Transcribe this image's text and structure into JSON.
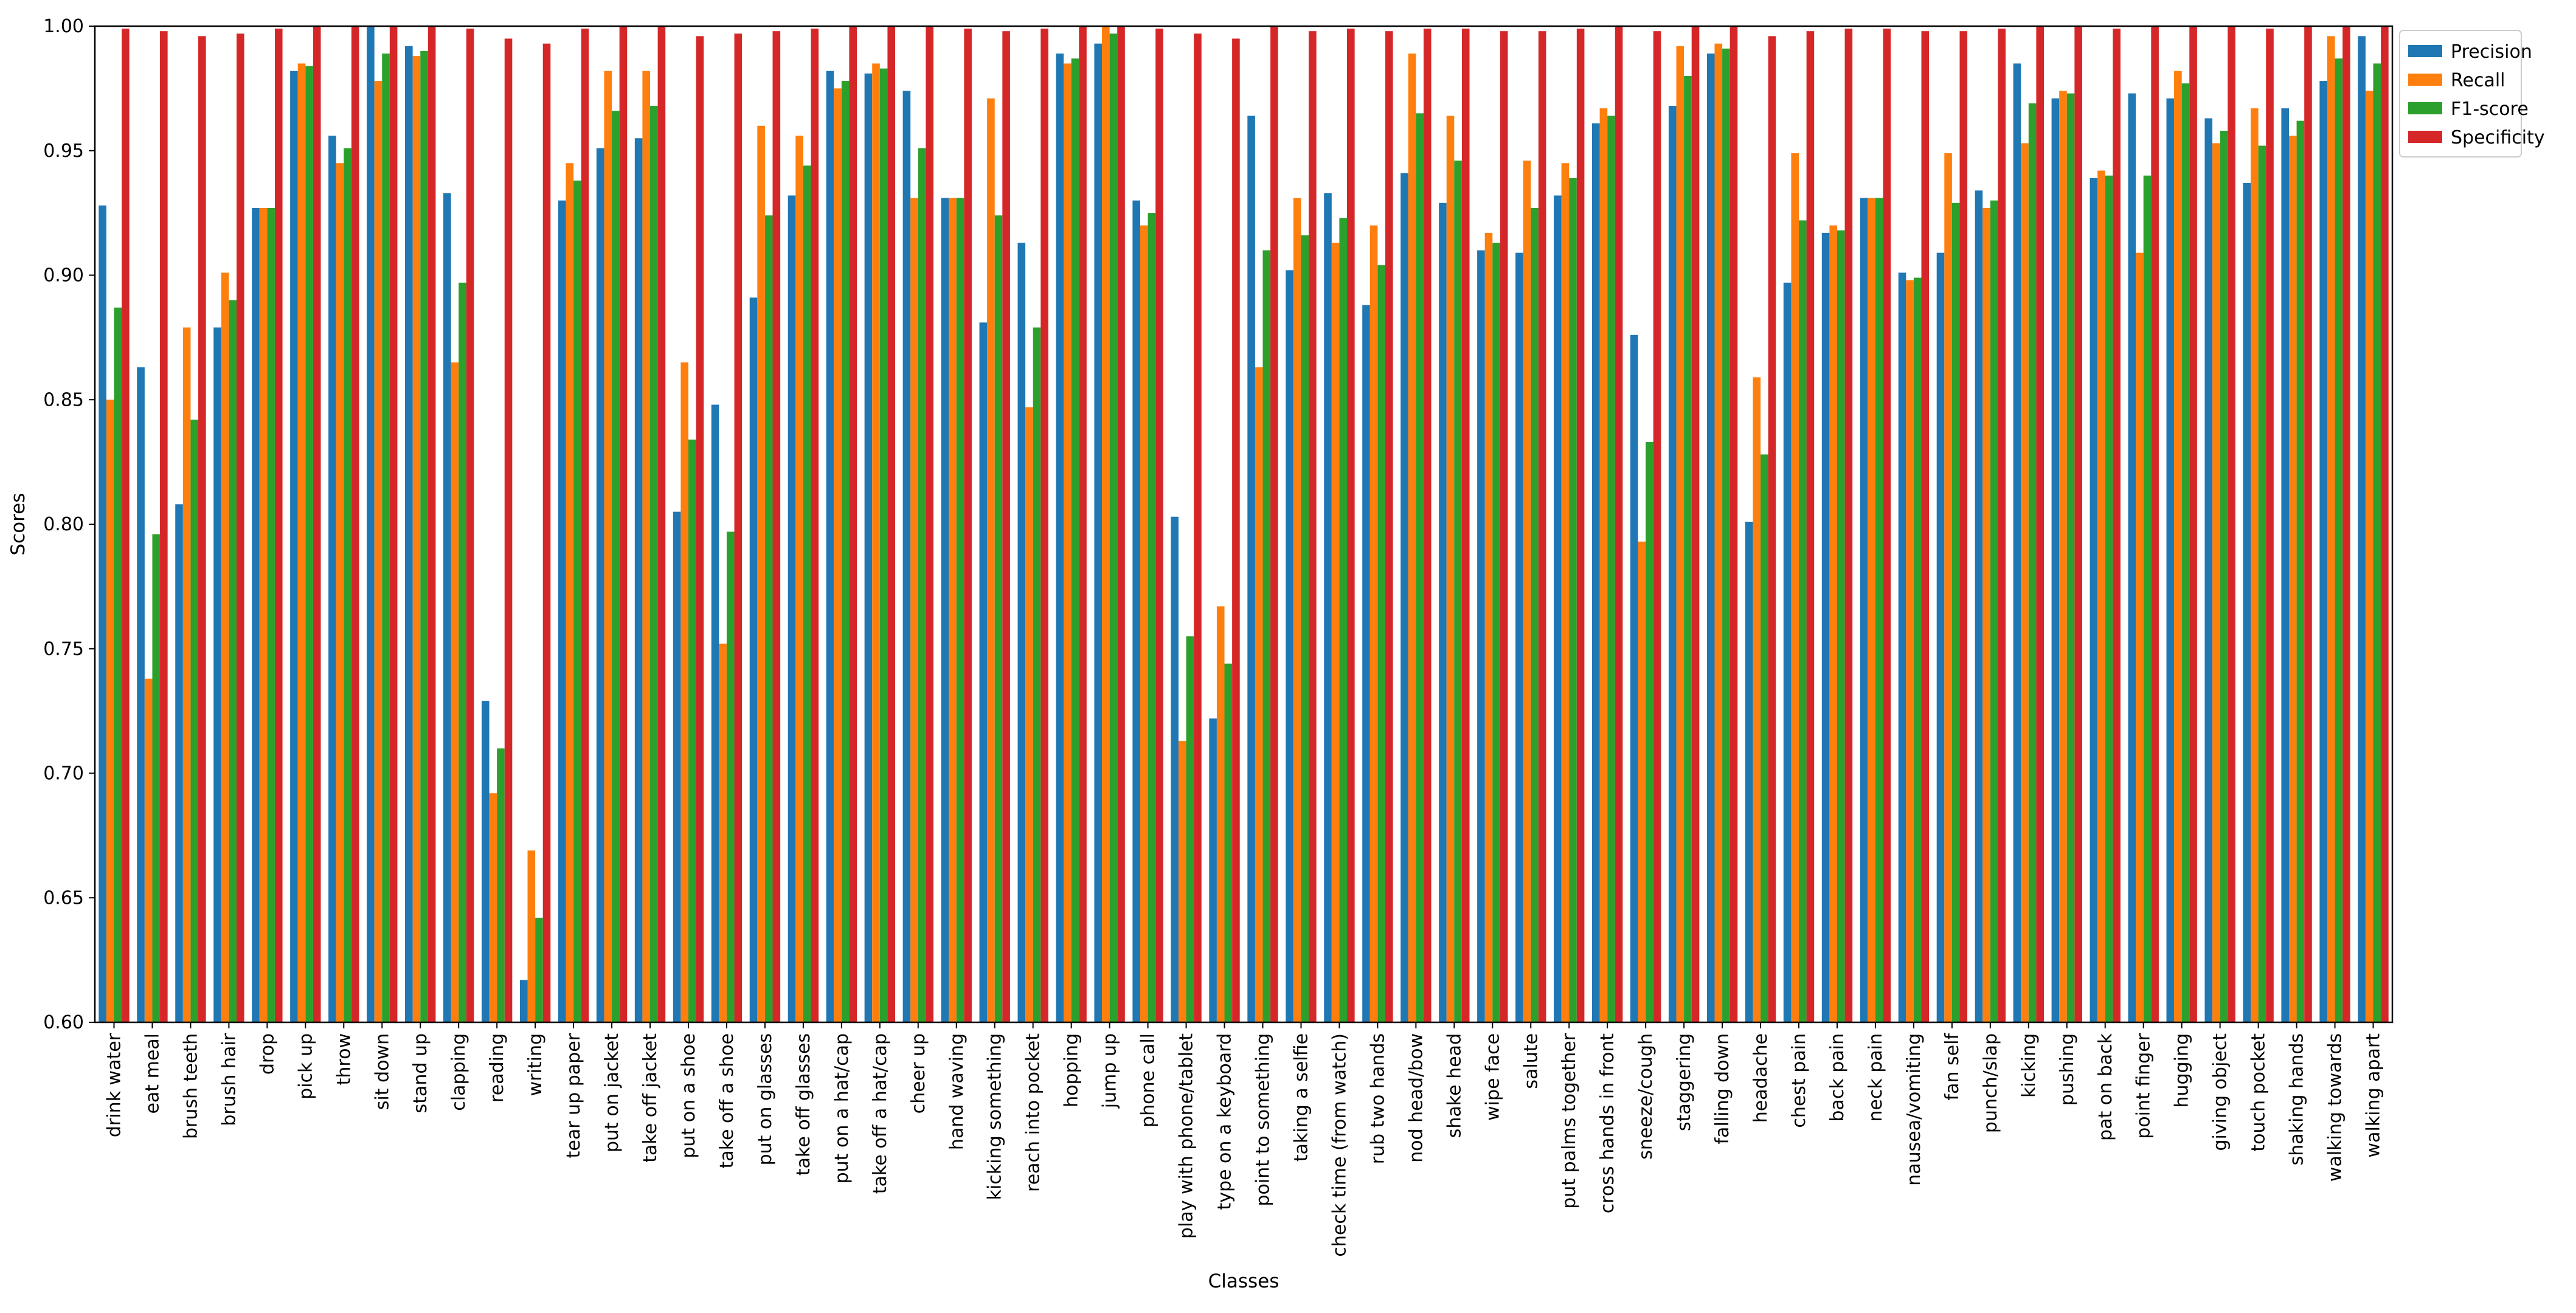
{
  "chart_data": {
    "type": "bar",
    "title": "",
    "xlabel": "Classes",
    "ylabel": "Scores",
    "ylim": [
      0.6,
      1.0
    ],
    "yticks": [
      "0.60",
      "0.65",
      "0.70",
      "0.75",
      "0.80",
      "0.85",
      "0.90",
      "0.95",
      "1.00"
    ],
    "grid": false,
    "legend_position": "top-right-outside",
    "categories": [
      "drink water",
      "eat meal",
      "brush teeth",
      "brush hair",
      "drop",
      "pick up",
      "throw",
      "sit down",
      "stand up",
      "clapping",
      "reading",
      "writing",
      "tear up paper",
      "put on jacket",
      "take off jacket",
      "put on a shoe",
      "take off a shoe",
      "put on glasses",
      "take off glasses",
      "put on a hat/cap",
      "take off a hat/cap",
      "cheer up",
      "hand waving",
      "kicking something",
      "reach into pocket",
      "hopping",
      "jump up",
      "phone call",
      "play with phone/tablet",
      "type on a keyboard",
      "point to something",
      "taking a selfie",
      "check time (from watch)",
      "rub two hands",
      "nod head/bow",
      "shake head",
      "wipe face",
      "salute",
      "put palms together",
      "cross hands in front",
      "sneeze/cough",
      "staggering",
      "falling down",
      "headache",
      "chest pain",
      "back pain",
      "neck pain",
      "nausea/vomiting",
      "fan self",
      "punch/slap",
      "kicking",
      "pushing",
      "pat on back",
      "point finger",
      "hugging",
      "giving object",
      "touch pocket",
      "shaking hands",
      "walking towards",
      "walking apart"
    ],
    "series": [
      {
        "name": "Precision",
        "color": "#1f77b4",
        "values": [
          0.928,
          0.863,
          0.808,
          0.879,
          0.927,
          0.982,
          0.956,
          1.0,
          0.992,
          0.933,
          0.729,
          0.617,
          0.93,
          0.951,
          0.955,
          0.805,
          0.848,
          0.891,
          0.932,
          0.982,
          0.981,
          0.974,
          0.931,
          0.881,
          0.913,
          0.989,
          0.993,
          0.93,
          0.803,
          0.722,
          0.964,
          0.902,
          0.933,
          0.888,
          0.941,
          0.929,
          0.91,
          0.909,
          0.932,
          0.961,
          0.876,
          0.968,
          0.989,
          0.801,
          0.897,
          0.917,
          0.931,
          0.901,
          0.909,
          0.934,
          0.985,
          0.971,
          0.939,
          0.973,
          0.971,
          0.963,
          0.937,
          0.967,
          0.978,
          0.996
        ]
      },
      {
        "name": "Recall",
        "color": "#ff7f0e",
        "values": [
          0.85,
          0.738,
          0.879,
          0.901,
          0.927,
          0.985,
          0.945,
          0.978,
          0.988,
          0.865,
          0.692,
          0.669,
          0.945,
          0.982,
          0.982,
          0.865,
          0.752,
          0.96,
          0.956,
          0.975,
          0.985,
          0.931,
          0.931,
          0.971,
          0.847,
          0.985,
          1.0,
          0.92,
          0.713,
          0.767,
          0.863,
          0.931,
          0.913,
          0.92,
          0.989,
          0.964,
          0.917,
          0.946,
          0.945,
          0.967,
          0.793,
          0.992,
          0.993,
          0.859,
          0.949,
          0.92,
          0.931,
          0.898,
          0.949,
          0.927,
          0.953,
          0.974,
          0.942,
          0.909,
          0.982,
          0.953,
          0.967,
          0.956,
          0.996,
          0.974
        ]
      },
      {
        "name": "F1-score",
        "color": "#2ca02c",
        "values": [
          0.887,
          0.796,
          0.842,
          0.89,
          0.927,
          0.984,
          0.951,
          0.989,
          0.99,
          0.897,
          0.71,
          0.642,
          0.938,
          0.966,
          0.968,
          0.834,
          0.797,
          0.924,
          0.944,
          0.978,
          0.983,
          0.951,
          0.931,
          0.924,
          0.879,
          0.987,
          0.997,
          0.925,
          0.755,
          0.744,
          0.91,
          0.916,
          0.923,
          0.904,
          0.965,
          0.946,
          0.913,
          0.927,
          0.939,
          0.964,
          0.833,
          0.98,
          0.991,
          0.828,
          0.922,
          0.918,
          0.931,
          0.899,
          0.929,
          0.93,
          0.969,
          0.973,
          0.94,
          0.94,
          0.977,
          0.958,
          0.952,
          0.962,
          0.987,
          0.985
        ]
      },
      {
        "name": "Specificity",
        "color": "#d62728",
        "values": [
          0.999,
          0.998,
          0.996,
          0.997,
          0.999,
          1.0,
          1.0,
          1.0,
          1.0,
          0.999,
          0.995,
          0.993,
          0.999,
          1.0,
          1.0,
          0.996,
          0.997,
          0.998,
          0.999,
          1.0,
          1.0,
          1.0,
          0.999,
          0.998,
          0.999,
          1.0,
          1.0,
          0.999,
          0.997,
          0.995,
          1.0,
          0.998,
          0.999,
          0.998,
          0.999,
          0.999,
          0.998,
          0.998,
          0.999,
          1.0,
          0.998,
          1.0,
          1.0,
          0.996,
          0.998,
          0.999,
          0.999,
          0.998,
          0.998,
          0.999,
          1.0,
          1.0,
          0.999,
          1.0,
          1.0,
          1.0,
          0.999,
          1.0,
          1.0,
          1.0
        ]
      }
    ]
  }
}
